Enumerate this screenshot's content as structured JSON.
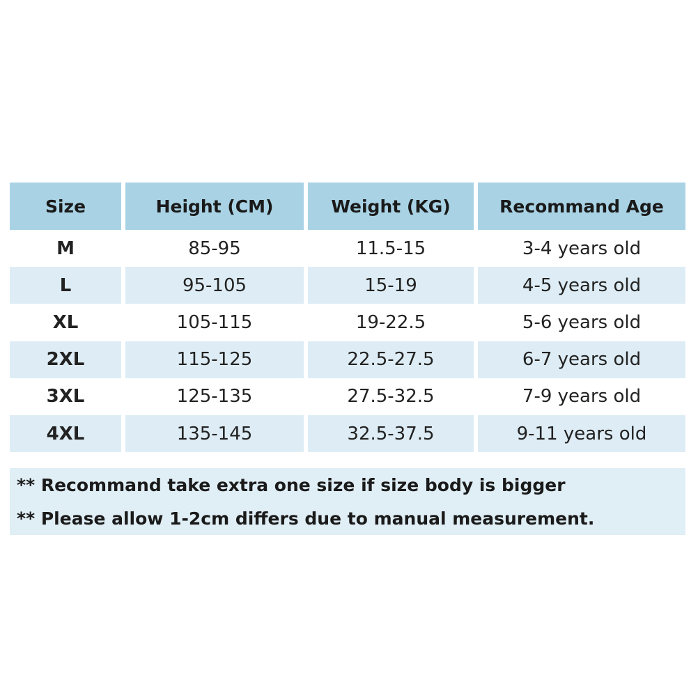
{
  "table": {
    "header": [
      "Size",
      "Height (CM)",
      "Weight (KG)",
      "Recommand Age"
    ],
    "rows": [
      [
        "M",
        "85-95",
        "11.5-15",
        "3-4 years old"
      ],
      [
        "L",
        "95-105",
        "15-19",
        "4-5 years old"
      ],
      [
        "XL",
        "105-115",
        "19-22.5",
        "5-6 years old"
      ],
      [
        "2XL",
        "115-125",
        "22.5-27.5",
        "6-7 years old"
      ],
      [
        "3XL",
        "125-135",
        "27.5-32.5",
        "7-9 years old"
      ],
      [
        "4XL",
        "135-145",
        "32.5-37.5",
        "9-11 years old"
      ]
    ]
  },
  "notes": [
    "** Recommand take extra one size if size body is bigger",
    "** Please allow 1-2cm differs due to manual measurement."
  ]
}
